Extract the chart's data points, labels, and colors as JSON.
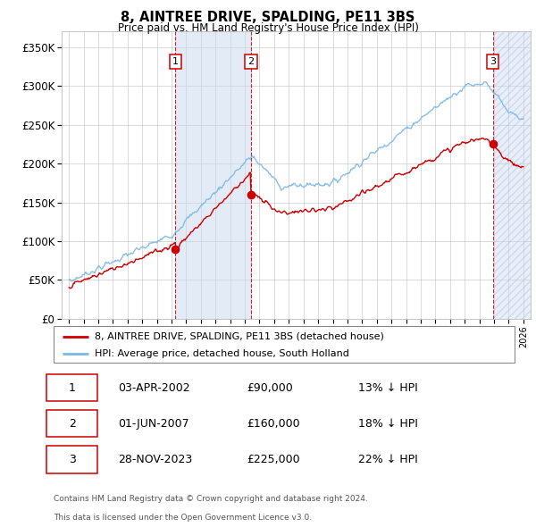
{
  "title": "8, AINTREE DRIVE, SPALDING, PE11 3BS",
  "subtitle": "Price paid vs. HM Land Registry's House Price Index (HPI)",
  "legend_line1": "8, AINTREE DRIVE, SPALDING, PE11 3BS (detached house)",
  "legend_line2": "HPI: Average price, detached house, South Holland",
  "hpi_color": "#7ab8e8",
  "price_color": "#cc0000",
  "purchases": [
    {
      "label": "1",
      "date_num": 2002.25,
      "price": 90000,
      "date_str": "03-APR-2002",
      "pct": "13%",
      "dir": "↓"
    },
    {
      "label": "2",
      "date_num": 2007.42,
      "price": 160000,
      "date_str": "01-JUN-2007",
      "pct": "18%",
      "dir": "↓"
    },
    {
      "label": "3",
      "date_num": 2023.91,
      "price": 225000,
      "date_str": "28-NOV-2023",
      "pct": "22%",
      "dir": "↓"
    }
  ],
  "footer1": "Contains HM Land Registry data © Crown copyright and database right 2024.",
  "footer2": "This data is licensed under the Open Government Licence v3.0.",
  "ylim": [
    0,
    370000
  ],
  "xlim_start": 1994.5,
  "xlim_end": 2026.5,
  "yticks": [
    0,
    50000,
    100000,
    150000,
    200000,
    250000,
    300000,
    350000
  ],
  "ytick_labels": [
    "£0",
    "£50K",
    "£100K",
    "£150K",
    "£200K",
    "£250K",
    "£300K",
    "£350K"
  ],
  "xticks": [
    1995,
    1996,
    1997,
    1998,
    1999,
    2000,
    2001,
    2002,
    2003,
    2004,
    2005,
    2006,
    2007,
    2008,
    2009,
    2010,
    2011,
    2012,
    2013,
    2014,
    2015,
    2016,
    2017,
    2018,
    2019,
    2020,
    2021,
    2022,
    2023,
    2024,
    2025,
    2026
  ],
  "shade_color": "#c8d8f0",
  "hatch_color": "#c8d8f0"
}
